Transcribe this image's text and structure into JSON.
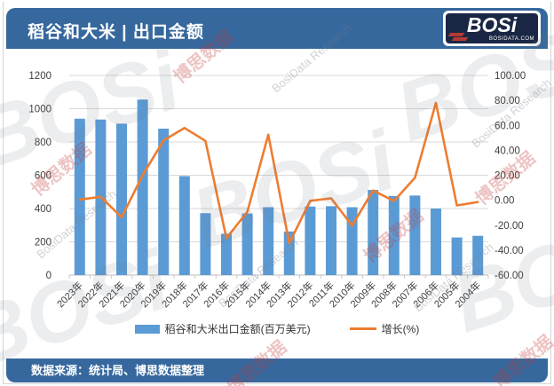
{
  "header": {
    "title": "稻谷和大米 | 出口金额",
    "logo": {
      "brand": "BOSi",
      "domain": "BOSIDATA.COM"
    }
  },
  "footer": {
    "source": "数据来源：统计局、博思数据整理"
  },
  "watermark": {
    "cn": "博思数据",
    "en": "BosiData Research",
    "logo_text": "BOSi"
  },
  "legend": {
    "bar_label": "稻谷和大米出口金额(百万美元)",
    "line_label": "增长(%)"
  },
  "chart_data": {
    "type": "bar+line",
    "title": "稻谷和大米 | 出口金额",
    "categories": [
      "2023年",
      "2022年",
      "2021年",
      "2020年",
      "2019年",
      "2018年",
      "2017年",
      "2016年",
      "2015年",
      "2014年",
      "2013年",
      "2012年",
      "2011年",
      "2010年",
      "2009年",
      "2008年",
      "2007年",
      "2006年",
      "2005年",
      "2004年"
    ],
    "series": [
      {
        "name": "稻谷和大米出口金额(百万美元)",
        "type": "bar",
        "axis": "left",
        "color": "#5B9BD5",
        "values": [
          940,
          935,
          910,
          1055,
          880,
          595,
          372,
          248,
          370,
          408,
          262,
          412,
          414,
          408,
          512,
          475,
          478,
          400,
          226,
          236
        ]
      },
      {
        "name": "增长(%)",
        "type": "line",
        "axis": "right",
        "color": "#ED7D31",
        "values": [
          0.5,
          2.7,
          -13.7,
          19.9,
          47.9,
          57.9,
          47.5,
          -30.5,
          -9.3,
          52.5,
          -34.5,
          -0.5,
          1.5,
          -20.3,
          7.8,
          -0.6,
          18.0,
          78.0,
          -4.2,
          -1.5
        ]
      }
    ],
    "left_axis": {
      "min": 0,
      "max": 1200,
      "step": 200,
      "ticks": [
        "1200",
        "1000",
        "800",
        "600",
        "400",
        "200",
        "0"
      ]
    },
    "right_axis": {
      "min": -60,
      "max": 100,
      "step": 20,
      "ticks": [
        "100.00",
        "80.00",
        "60.00",
        "40.00",
        "20.00",
        "0.00",
        "-20.00",
        "-40.00",
        "-60.00"
      ]
    },
    "grid": true,
    "legend_position": "bottom",
    "colors": {
      "bar": "#5B9BD5",
      "line": "#ED7D31",
      "grid": "#d9d9d9",
      "axis": "#bfbfbf",
      "tick_text": "#404040"
    }
  }
}
